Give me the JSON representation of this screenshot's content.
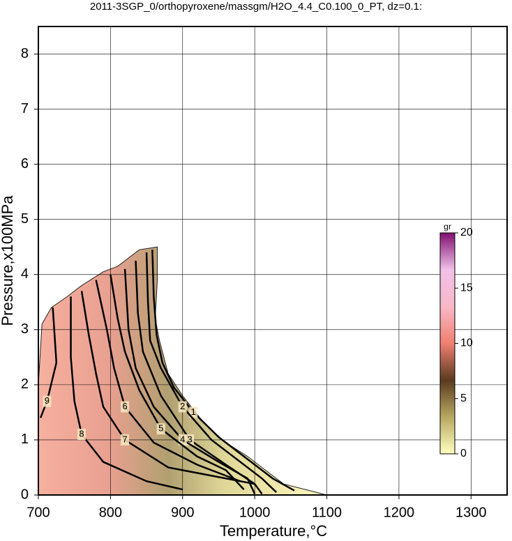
{
  "chart_data": {
    "type": "contour",
    "title": "2011-3SGP_0/orthopyroxene/massgm/H2O_4.4_C0.100_0_PT, dz=0.1:",
    "x_label": "Temperature,°C",
    "y_label": "Pressure,x100MPa",
    "xlim": [
      700,
      1350
    ],
    "ylim": [
      0,
      8.5
    ],
    "xticks": [
      700,
      800,
      900,
      1000,
      1100,
      1200,
      1300
    ],
    "yticks": [
      0,
      1,
      2,
      3,
      4,
      5,
      6,
      7,
      8
    ],
    "grid": true,
    "field": {
      "x": [
        700,
        705,
        718,
        740,
        760,
        790,
        810,
        840,
        865,
        865,
        862,
        868,
        880,
        900,
        930,
        960,
        990,
        1020,
        1040,
        1070,
        1100,
        700
      ],
      "y": [
        2.0,
        3.1,
        3.4,
        3.6,
        3.8,
        4.05,
        4.15,
        4.45,
        4.5,
        3.9,
        3.2,
        2.8,
        2.2,
        1.8,
        1.3,
        0.95,
        0.7,
        0.4,
        0.2,
        0.1,
        0,
        0
      ]
    },
    "contours": [
      {
        "level": 1,
        "x": [
          858,
          860,
          864,
          872,
          888,
          915,
          950,
          990,
          1025,
          1055
        ],
        "y": [
          4.45,
          3.6,
          2.9,
          2.4,
          1.95,
          1.5,
          1.05,
          0.65,
          0.3,
          0.08
        ]
      },
      {
        "level": 2,
        "x": [
          850,
          852,
          855,
          870,
          900,
          940,
          980,
          1010,
          1030
        ],
        "y": [
          4.4,
          3.5,
          2.8,
          2.3,
          1.6,
          1.0,
          0.6,
          0.3,
          0.05
        ]
      },
      {
        "level": 3,
        "x": [
          835,
          838,
          845,
          870,
          910,
          960,
          1000,
          1010
        ],
        "y": [
          4.25,
          3.3,
          2.6,
          1.8,
          1.0,
          0.55,
          0.2,
          0.02
        ]
      },
      {
        "level": 4,
        "x": [
          820,
          825,
          835,
          860,
          900,
          950,
          990,
          1000
        ],
        "y": [
          4.1,
          3.0,
          2.3,
          1.6,
          1.0,
          0.6,
          0.3,
          0.02
        ]
      },
      {
        "level": 5,
        "x": [
          800,
          810,
          820,
          840,
          870,
          920,
          960,
          985
        ],
        "y": [
          4.0,
          3.2,
          2.6,
          1.9,
          1.2,
          0.7,
          0.45,
          0.1
        ]
      },
      {
        "level": 6,
        "x": [
          780,
          795,
          805,
          820,
          860,
          920,
          980
        ],
        "y": [
          3.9,
          3.0,
          2.3,
          1.6,
          0.95,
          0.55,
          0.25
        ]
      },
      {
        "level": 7,
        "x": [
          760,
          770,
          780,
          790,
          820,
          880,
          960,
          1000
        ],
        "y": [
          3.7,
          2.9,
          2.2,
          1.6,
          1.0,
          0.5,
          0.3,
          0.2
        ]
      },
      {
        "level": 8,
        "x": [
          745,
          745,
          750,
          760,
          790,
          850,
          900
        ],
        "y": [
          3.6,
          2.5,
          1.7,
          1.1,
          0.6,
          0.25,
          0.1
        ]
      },
      {
        "level": 9,
        "x": [
          720,
          725,
          712,
          703
        ],
        "y": [
          3.4,
          2.4,
          1.7,
          1.4
        ]
      }
    ],
    "colorbar": {
      "label": "gr",
      "lim": [
        0,
        20
      ],
      "ticks": [
        0,
        5,
        10,
        15,
        20
      ],
      "colors": [
        "#ffffc0",
        "#b8a860",
        "#5a3a20",
        "#f08070",
        "#f8b8c8",
        "#f0c0e8",
        "#801070"
      ]
    }
  }
}
